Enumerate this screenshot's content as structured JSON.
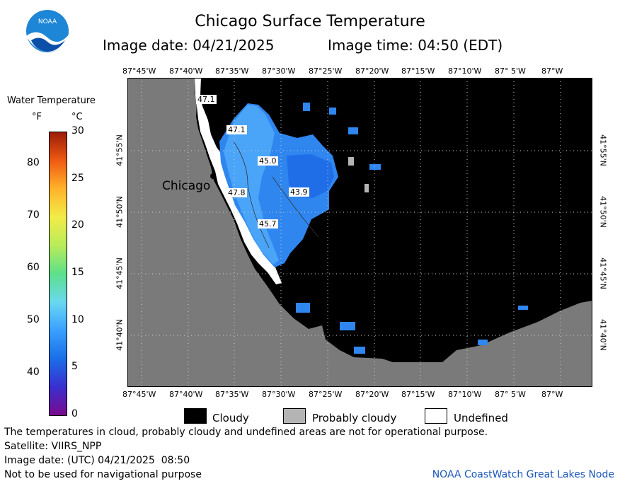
{
  "header": {
    "title": "Chicago Surface Temperature",
    "image_date": "Image date: 04/21/2025",
    "image_time": "Image time: 04:50 (EDT)",
    "logo_text": "NOAA"
  },
  "colorbar": {
    "title": "Water Temperature",
    "unit_f": "°F",
    "unit_c": "°C",
    "f_ticks": [
      "80",
      "70",
      "60",
      "50",
      "40"
    ],
    "c_ticks": [
      "30",
      "25",
      "20",
      "15",
      "10",
      "5",
      "0"
    ],
    "scale": [
      {
        "temp_c": 0,
        "color": "#7a0a8c"
      },
      {
        "temp_c": 3,
        "color": "#3a2fd0"
      },
      {
        "temp_c": 6,
        "color": "#1a6ee8"
      },
      {
        "temp_c": 9,
        "color": "#3aa0ff"
      },
      {
        "temp_c": 12,
        "color": "#6ad8f0"
      },
      {
        "temp_c": 15,
        "color": "#5de08a"
      },
      {
        "temp_c": 18,
        "color": "#b8ec5a"
      },
      {
        "temp_c": 21,
        "color": "#f2ec48"
      },
      {
        "temp_c": 24,
        "color": "#ffb32a"
      },
      {
        "temp_c": 27,
        "color": "#f05a12"
      },
      {
        "temp_c": 30,
        "color": "#9a1c0a"
      }
    ]
  },
  "map": {
    "lon_labels": [
      "87°45'W",
      "87°40'W",
      "87°35'W",
      "87°30'W",
      "87°25'W",
      "87°20'W",
      "87°15'W",
      "87°10'W",
      "87° 5'W",
      "87°W"
    ],
    "lat_labels": [
      "41°55'N",
      "41°50'N",
      "41°45'N",
      "41°40'N"
    ],
    "city_label": "Chicago",
    "isotherms": [
      "47.1",
      "47.1",
      "45.0",
      "47.8",
      "43.9",
      "45.7"
    ],
    "colors": {
      "land": "#7a7a7a",
      "cloud": "#000000",
      "probably_cloudy": "#b4b4b4",
      "undefined": "#ffffff"
    }
  },
  "legend": {
    "cloudy": "Cloudy",
    "probably_cloudy": "Probably cloudy",
    "undefined": "Undefined"
  },
  "footer": {
    "disclaimer": "The temperatures in cloud, probably cloudy and undefined areas are not for operational purpose.",
    "satellite": "Satellite: VIIRS_NPP",
    "utc_date": "Image date: (UTC) 04/21/2025  08:50",
    "nav_warning": "Not to be used for navigational purpose",
    "node": "NOAA CoastWatch Great Lakes Node"
  }
}
